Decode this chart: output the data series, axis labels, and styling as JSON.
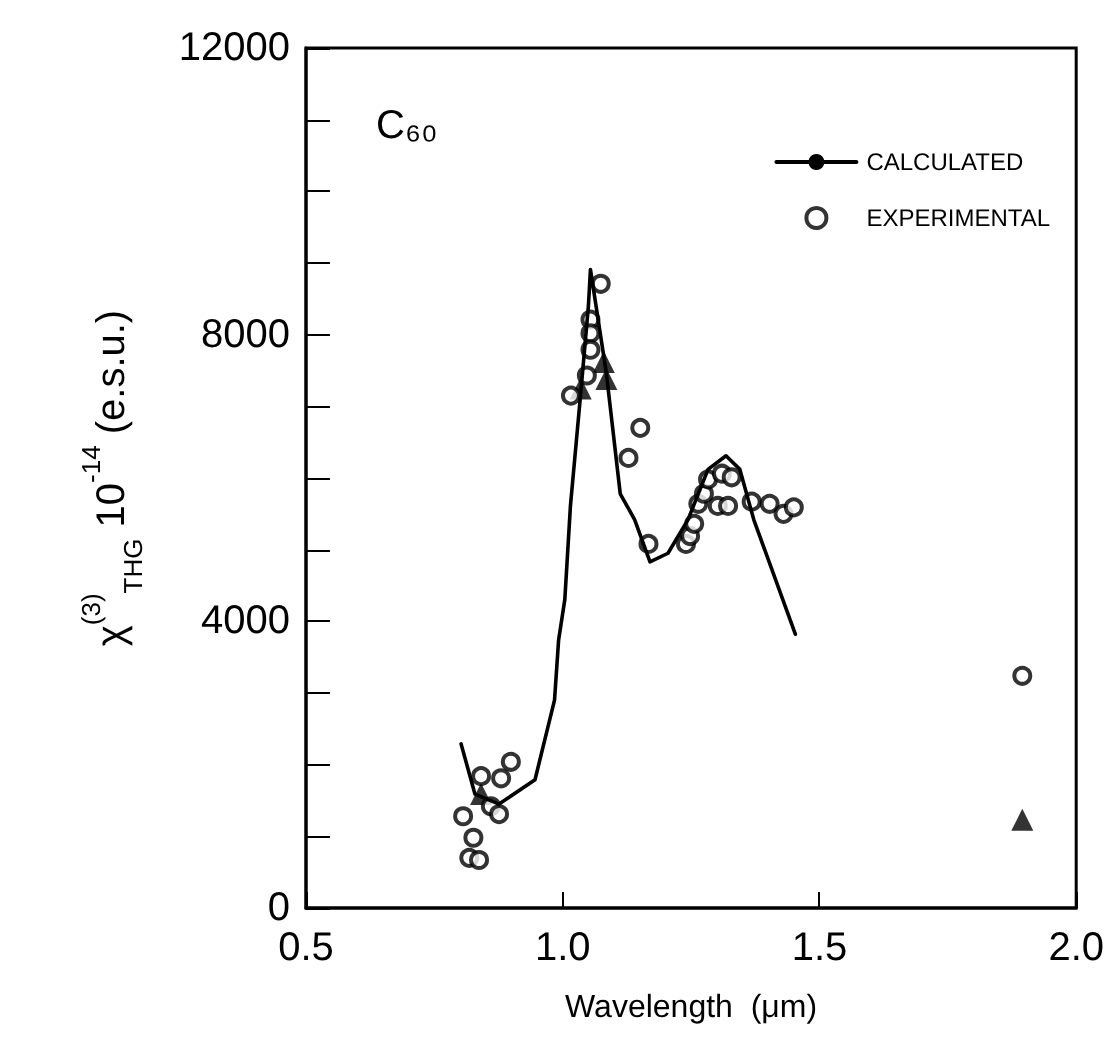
{
  "chart_data": {
    "type": "line",
    "title": "C₆₀",
    "xlabel": "Wavelength  (μm)",
    "ylabel": "χ$^{(3)}$$_{THG}$ 10$^{-14}$ (e.s.u.)",
    "xlim": [
      0.5,
      2.0
    ],
    "xticks": [
      {
        "value": 0.5,
        "label": "0.5"
      },
      {
        "value": 1.0,
        "label": "1.0"
      },
      {
        "value": 1.5,
        "label": "1.5"
      },
      {
        "value": 2.0,
        "label": "2.0"
      }
    ],
    "ylim": [
      0,
      12000
    ],
    "yticks": [
      0,
      {
        "value": 1000,
        "label": null
      },
      {
        "value": 2000,
        "label": null
      },
      {
        "value": 3000,
        "label": null
      },
      4000,
      {
        "value": 5000,
        "label": null
      },
      {
        "value": 6000,
        "label": null
      },
      {
        "value": 7000,
        "label": null
      },
      8000,
      {
        "value": 9000,
        "label": null
      },
      {
        "value": 10000,
        "label": null
      },
      {
        "value": 11000,
        "label": null
      },
      12000
    ],
    "grid": false,
    "legend": "top right",
    "series": [
      {
        "name": "CALCULATED",
        "color": "#000000",
        "marker": "none",
        "line_style": "solid",
        "x": [
          0.802,
          0.829,
          0.876,
          0.946,
          0.984,
          0.992,
          1.004,
          1.015,
          1.035,
          1.05,
          1.054,
          1.085,
          1.112,
          1.14,
          1.17,
          1.205,
          1.244,
          1.283,
          1.318,
          1.345,
          1.372,
          1.453
        ],
        "values": [
          2290,
          1590,
          1450,
          1790,
          2900,
          3740,
          4300,
          5610,
          7180,
          8400,
          8910,
          7460,
          5780,
          5420,
          4830,
          4950,
          5420,
          6120,
          6310,
          6120,
          5420,
          3820
        ]
      },
      {
        "type": "scatter",
        "color": "#000000",
        "marker": "triangle",
        "x": [
          0.841,
          1.035,
          1.08,
          1.085,
          1.895
        ],
        "values": [
          1590,
          7250,
          7620,
          7380,
          1230
        ]
      },
      {
        "name": "EXPERIMENTAL",
        "type": "scatter",
        "color": "#000000",
        "marker": "circle",
        "x": [
          1.074,
          1.054,
          1.054,
          1.054,
          1.047,
          1.016,
          1.151,
          1.128,
          1.167,
          1.24,
          1.248,
          1.256,
          1.264,
          1.275,
          1.283,
          1.302,
          1.322,
          1.31,
          1.329,
          1.368,
          1.403,
          1.43,
          1.45,
          0.899,
          0.88,
          0.841,
          0.86,
          0.876,
          0.806,
          0.826,
          0.818,
          0.837,
          1.895
        ],
        "values": [
          8710,
          8210,
          8020,
          7790,
          7430,
          7150,
          6700,
          6280,
          5080,
          5080,
          5190,
          5360,
          5640,
          5780,
          5980,
          5610,
          5610,
          6060,
          6010,
          5670,
          5640,
          5500,
          5590,
          2040,
          1810,
          1840,
          1420,
          1310,
          1280,
          980,
          700,
          670,
          3240
        ]
      }
    ]
  }
}
